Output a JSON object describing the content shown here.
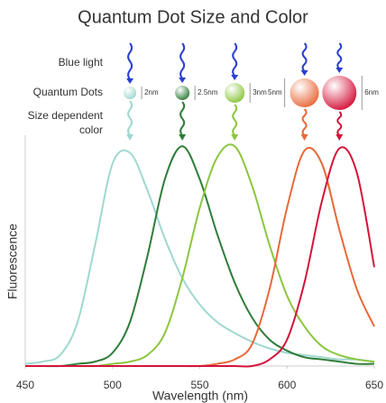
{
  "chart_data": {
    "type": "line",
    "title": "Quantum Dot Size and Color",
    "row_labels": [
      "Blue light",
      "Quantum Dots"
    ],
    "color_label": [
      "Size dependent",
      "color"
    ],
    "dot_sizes": [
      "2nm",
      "2.5nm",
      "3nm",
      "5nm",
      "6nm"
    ],
    "x_label": "Wavelength (nm)",
    "y_label": "Fluorescence",
    "x": [
      450,
      460,
      470,
      480,
      490,
      500,
      510,
      520,
      530,
      540,
      550,
      560,
      570,
      580,
      590,
      600,
      610,
      620,
      630,
      640,
      650
    ],
    "series": [
      {
        "color": "#9fd8d0",
        "values": [
          0.01,
          0.02,
          0.05,
          0.2,
          0.55,
          0.92,
          0.97,
          0.8,
          0.58,
          0.4,
          0.28,
          0.2,
          0.15,
          0.11,
          0.08,
          0.06,
          0.05,
          0.04,
          0.03,
          0.03,
          0.02
        ]
      },
      {
        "color": "#2e7d3a",
        "values": [
          0,
          0,
          0,
          0.01,
          0.02,
          0.06,
          0.2,
          0.5,
          0.85,
          1.0,
          0.85,
          0.6,
          0.38,
          0.22,
          0.12,
          0.07,
          0.04,
          0.03,
          0.02,
          0.01,
          0.01
        ]
      },
      {
        "color": "#8cc63f",
        "values": [
          0,
          0,
          0,
          0,
          0,
          0.01,
          0.02,
          0.05,
          0.15,
          0.4,
          0.72,
          0.95,
          1.0,
          0.82,
          0.55,
          0.32,
          0.18,
          0.09,
          0.05,
          0.03,
          0.02
        ]
      },
      {
        "color": "#e8683a",
        "values": [
          0,
          0,
          0,
          0,
          0,
          0,
          0,
          0,
          0,
          0,
          0,
          0.01,
          0.03,
          0.1,
          0.35,
          0.72,
          0.98,
          0.92,
          0.62,
          0.35,
          0.18
        ]
      },
      {
        "color": "#d4143a",
        "values": [
          0,
          0,
          0,
          0,
          0,
          0,
          0,
          0,
          0,
          0,
          0,
          0,
          0,
          0,
          0.03,
          0.12,
          0.38,
          0.75,
          0.99,
          0.88,
          0.45
        ]
      }
    ],
    "xlim": [
      450,
      650
    ],
    "xticks": [
      450,
      500,
      550,
      600,
      650
    ],
    "ylim": [
      0,
      1.05
    ]
  }
}
